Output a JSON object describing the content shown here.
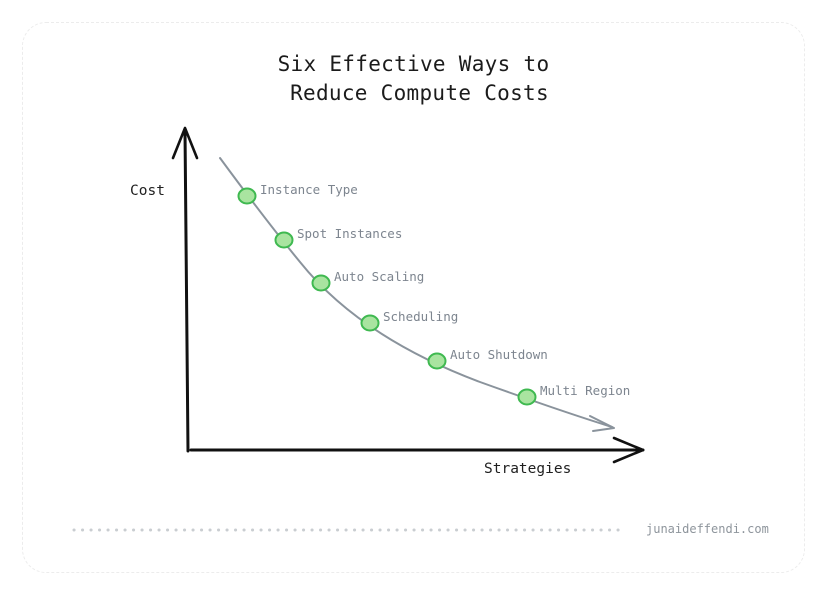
{
  "title": {
    "line1": "Six Effective Ways to",
    "line2": "Reduce Compute Costs"
  },
  "y_axis_label": "Cost",
  "x_axis_label": "Strategies",
  "points": [
    {
      "label": "Instance Type"
    },
    {
      "label": "Spot Instances"
    },
    {
      "label": "Auto Scaling"
    },
    {
      "label": "Scheduling"
    },
    {
      "label": "Auto Shutdown"
    },
    {
      "label": "Multi Region"
    }
  ],
  "colors": {
    "point_fill": "#a9e4a0",
    "point_stroke": "#3fb950",
    "curve": "#8a939c",
    "axis": "#111111",
    "label": "#7d858f"
  },
  "footer": {
    "site": "junaideffendi.com"
  }
}
